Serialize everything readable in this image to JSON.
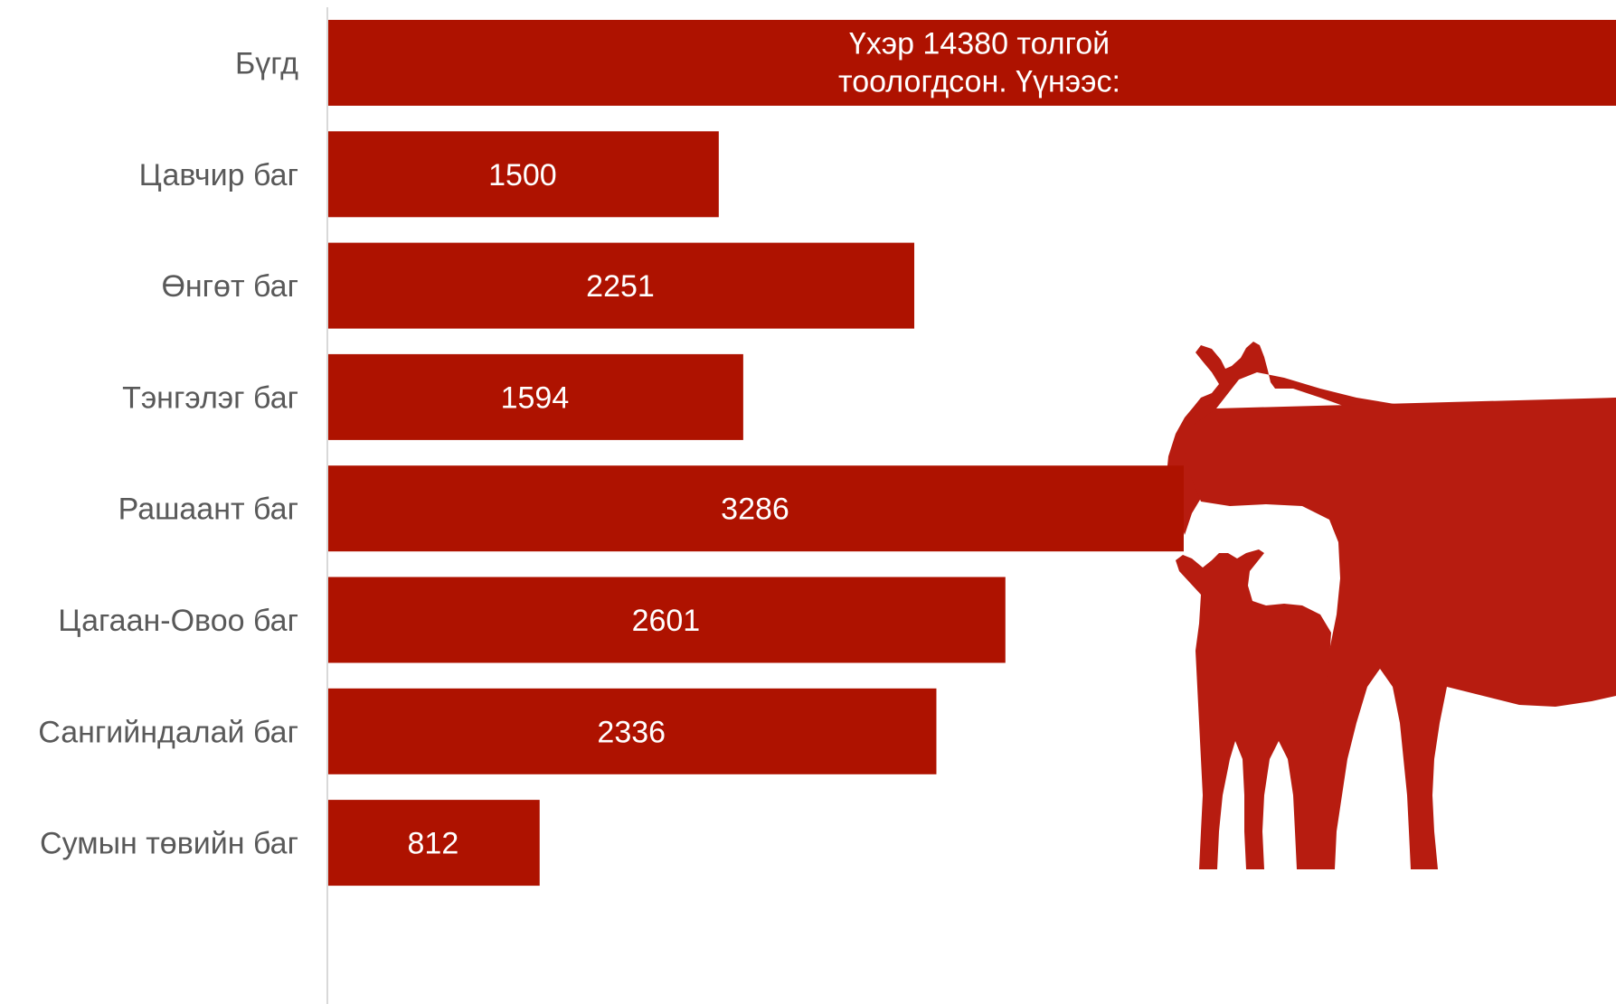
{
  "chart_data": {
    "type": "bar",
    "orientation": "horizontal",
    "bar_color": "#ae1200",
    "axis_color": "#d9d9d9",
    "categories": [
      "Бүгд",
      "Цавчир баг",
      "Өнгөт баг",
      "Тэнгэлэг баг",
      "Рашаант баг",
      "Цагаан-Овоо баг",
      "Сангийндалай баг",
      "Сумын төвийн баг"
    ],
    "values": [
      null,
      1500,
      2251,
      1594,
      3286,
      2601,
      2336,
      812
    ],
    "data_labels": [
      "",
      "1500",
      "2251",
      "1594",
      "3286",
      "2601",
      "2336",
      "812"
    ],
    "total": {
      "value": 14380,
      "label_lines": [
        "Үхэр 14380 толгой",
        "тоологдсон. Үүнээс:"
      ]
    },
    "xlim": [
      0,
      4950
    ],
    "grid": false,
    "legend": "none",
    "decoration": "cow-and-calf-silhouette"
  }
}
